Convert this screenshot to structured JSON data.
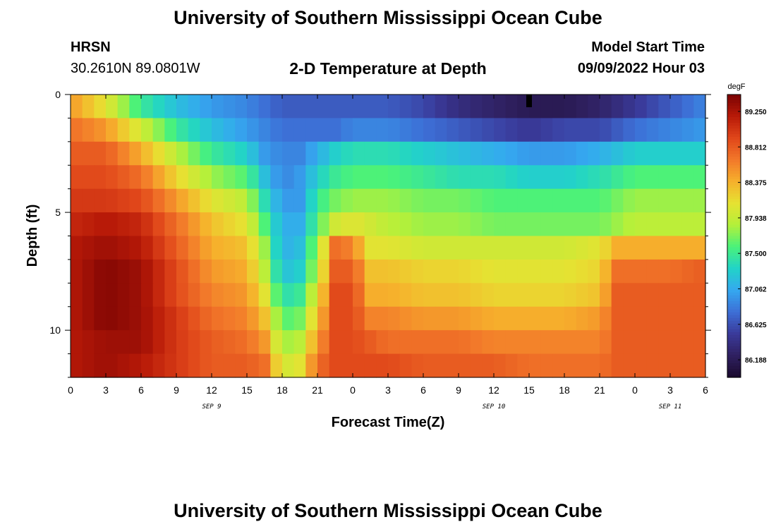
{
  "header": {
    "title": "University of Southern Mississippi Ocean Cube",
    "station": "HRSN",
    "coords": "30.2610N  89.0801W",
    "subtitle": "2-D Temperature at Depth",
    "model_start_label": "Model Start Time",
    "model_start_value": "09/09/2022 Hour 03"
  },
  "footer": {
    "title": "University of Southern Mississippi Ocean Cube"
  },
  "chart_data": {
    "type": "heatmap",
    "xlabel": "Forecast Time(Z)",
    "ylabel": "Depth (ft)",
    "x_range_hours": [
      0,
      54
    ],
    "y_range_ft": [
      0,
      12
    ],
    "x_tick_labels": [
      "0",
      "3",
      "6",
      "9",
      "12",
      "15",
      "18",
      "21",
      "0",
      "3",
      "6",
      "9",
      "12",
      "15",
      "18",
      "21",
      "0",
      "3",
      "6"
    ],
    "y_tick_labels": [
      "0",
      "5",
      "10"
    ],
    "date_labels": [
      {
        "text": "SEP 9",
        "hour": 12
      },
      {
        "text": "SEP 10",
        "hour": 36
      },
      {
        "text": "SEP 11",
        "hour": 51
      }
    ],
    "colorbar": {
      "unit": "degF",
      "tick_labels": [
        "89.250",
        "88.812",
        "88.375",
        "87.938",
        "87.500",
        "87.062",
        "86.625",
        "86.188"
      ],
      "vmin": 86.0,
      "vmax": 89.45,
      "colors": [
        "#1a0a2e",
        "#2f2060",
        "#3a3a9a",
        "#3d6fd6",
        "#35a8f0",
        "#22d3c8",
        "#4af27a",
        "#b4f03a",
        "#e6e232",
        "#f6b02c",
        "#f2782a",
        "#e0461a",
        "#b81a08",
        "#7a0303"
      ]
    },
    "depth_levels_ft": [
      0.5,
      1.5,
      2.5,
      3.5,
      4.5,
      5.5,
      6.5,
      7.5,
      8.5,
      9.5,
      10.5,
      11.5
    ],
    "time_knots_hours": [
      0,
      3,
      6,
      9,
      12,
      15,
      16.5,
      18,
      19.5,
      21,
      22.5,
      24,
      25.5,
      27,
      30,
      33,
      36,
      39,
      42,
      45,
      46.5,
      48,
      51,
      54
    ],
    "temperature_degF": [
      [
        88.5,
        88.1,
        87.5,
        87.2,
        87.0,
        86.9,
        86.8,
        86.7,
        86.7,
        86.7,
        86.7,
        86.7,
        86.7,
        86.7,
        86.6,
        86.4,
        86.3,
        86.2,
        86.2,
        86.3,
        86.4,
        86.5,
        86.7,
        86.9
      ],
      [
        88.7,
        88.5,
        88.0,
        87.5,
        87.2,
        87.0,
        86.9,
        86.8,
        86.8,
        86.8,
        86.8,
        86.9,
        86.9,
        86.9,
        86.8,
        86.7,
        86.6,
        86.5,
        86.6,
        86.6,
        86.7,
        86.8,
        86.9,
        87.0
      ],
      [
        88.8,
        88.8,
        88.4,
        87.9,
        87.5,
        87.3,
        87.0,
        86.9,
        86.9,
        87.1,
        87.3,
        87.4,
        87.4,
        87.4,
        87.3,
        87.2,
        87.1,
        87.0,
        87.0,
        87.1,
        87.2,
        87.3,
        87.3,
        87.3
      ],
      [
        88.9,
        88.9,
        88.7,
        88.2,
        87.8,
        87.6,
        87.2,
        86.9,
        87.0,
        87.3,
        87.5,
        87.6,
        87.6,
        87.6,
        87.5,
        87.4,
        87.4,
        87.3,
        87.3,
        87.4,
        87.5,
        87.6,
        87.6,
        87.6
      ],
      [
        89.0,
        89.0,
        88.9,
        88.5,
        88.1,
        87.9,
        87.4,
        87.0,
        87.0,
        87.5,
        87.7,
        87.8,
        87.8,
        87.8,
        87.7,
        87.7,
        87.6,
        87.6,
        87.6,
        87.6,
        87.7,
        87.8,
        87.8,
        87.8
      ],
      [
        89.1,
        89.2,
        89.1,
        88.7,
        88.3,
        88.1,
        87.6,
        87.1,
        87.1,
        87.6,
        88.0,
        88.1,
        88.0,
        87.9,
        87.8,
        87.8,
        87.7,
        87.7,
        87.7,
        87.7,
        87.8,
        87.9,
        87.9,
        87.9
      ],
      [
        89.2,
        89.3,
        89.2,
        88.8,
        88.4,
        88.3,
        87.8,
        87.1,
        87.2,
        87.8,
        88.7,
        88.6,
        88.1,
        88.1,
        88.0,
        88.0,
        88.0,
        88.0,
        88.0,
        88.1,
        88.4,
        88.4,
        88.4,
        88.4
      ],
      [
        89.2,
        89.4,
        89.3,
        88.9,
        88.5,
        88.4,
        87.9,
        87.2,
        87.3,
        87.9,
        88.8,
        88.8,
        88.3,
        88.3,
        88.2,
        88.2,
        88.1,
        88.1,
        88.1,
        88.2,
        88.7,
        88.7,
        88.7,
        88.8
      ],
      [
        89.2,
        89.4,
        89.3,
        88.9,
        88.6,
        88.5,
        88.1,
        87.4,
        87.5,
        88.1,
        88.9,
        88.9,
        88.4,
        88.4,
        88.3,
        88.3,
        88.2,
        88.2,
        88.2,
        88.3,
        88.8,
        88.8,
        88.8,
        88.8
      ],
      [
        89.2,
        89.4,
        89.3,
        89.0,
        88.7,
        88.6,
        88.3,
        87.6,
        87.7,
        88.3,
        88.9,
        88.9,
        88.6,
        88.6,
        88.5,
        88.5,
        88.4,
        88.4,
        88.4,
        88.5,
        88.8,
        88.8,
        88.8,
        88.8
      ],
      [
        89.2,
        89.3,
        89.3,
        89.0,
        88.8,
        88.7,
        88.5,
        87.8,
        87.9,
        88.5,
        88.9,
        88.9,
        88.8,
        88.7,
        88.7,
        88.7,
        88.6,
        88.6,
        88.6,
        88.6,
        88.8,
        88.8,
        88.8,
        88.8
      ],
      [
        89.2,
        89.3,
        89.2,
        89.0,
        88.8,
        88.8,
        88.7,
        88.0,
        88.1,
        88.7,
        88.9,
        88.9,
        88.9,
        88.9,
        88.8,
        88.8,
        88.8,
        88.7,
        88.7,
        88.7,
        88.8,
        88.8,
        88.8,
        88.8
      ]
    ],
    "marker": {
      "hour": 39,
      "depth_ft": 0.25
    }
  }
}
